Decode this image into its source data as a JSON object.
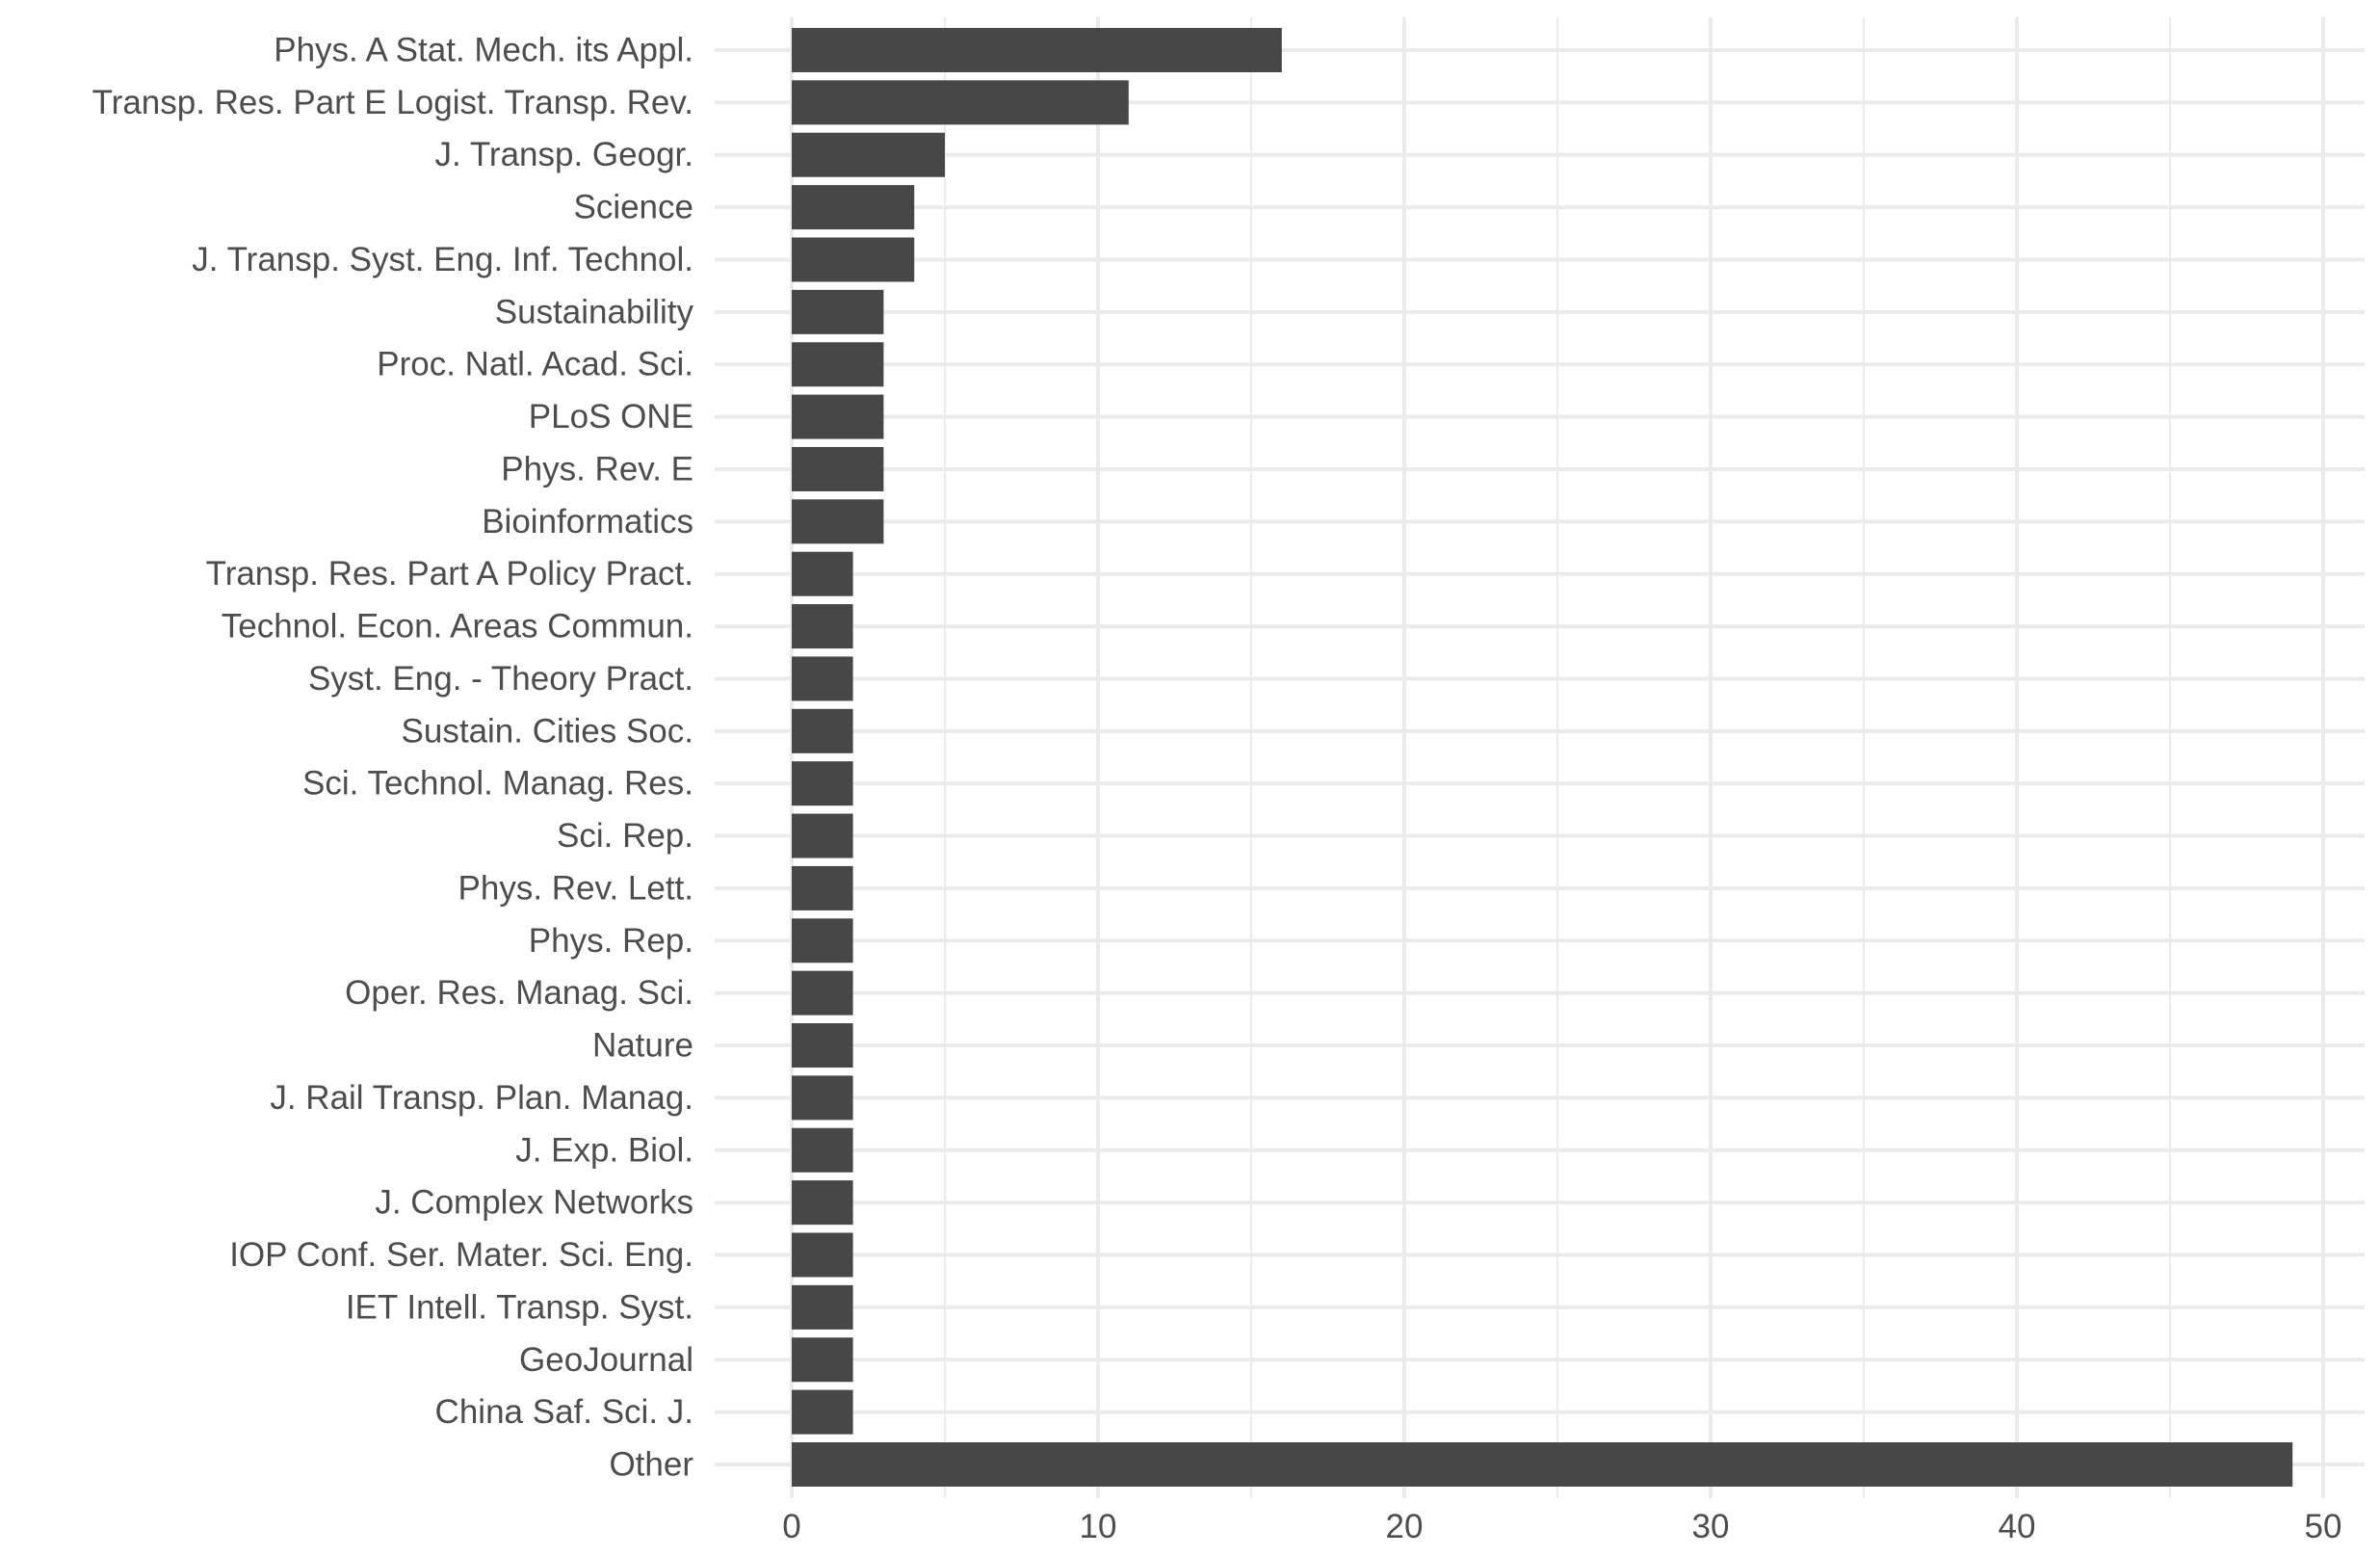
{
  "chart_data": {
    "type": "bar",
    "orientation": "horizontal",
    "title": "",
    "xlabel": "",
    "ylabel": "",
    "xlim": [
      0,
      50
    ],
    "x_ticks": [
      0,
      10,
      20,
      30,
      40,
      50
    ],
    "grid": true,
    "legend": "none",
    "bar_color": "#474747",
    "grid_color": "#ebebeb",
    "text_color": "#4d4d4d",
    "categories": [
      "Phys. A Stat. Mech. its Appl.",
      "Transp. Res. Part E Logist. Transp. Rev.",
      "J. Transp. Geogr.",
      "Science",
      "J. Transp. Syst. Eng. Inf. Technol.",
      "Sustainability",
      "Proc. Natl. Acad. Sci.",
      "PLoS ONE",
      "Phys. Rev. E",
      "Bioinformatics",
      "Transp. Res. Part A Policy Pract.",
      "Technol. Econ. Areas Commun.",
      "Syst. Eng. - Theory Pract.",
      "Sustain. Cities Soc.",
      "Sci. Technol. Manag. Res.",
      "Sci. Rep.",
      "Phys. Rev. Lett.",
      "Phys. Rep.",
      "Oper. Res. Manag. Sci.",
      "Nature",
      "J. Rail Transp. Plan. Manag.",
      "J. Exp. Biol.",
      "J. Complex Networks",
      "IOP Conf. Ser. Mater. Sci. Eng.",
      "IET Intell. Transp. Syst.",
      "GeoJournal",
      "China Saf. Sci. J.",
      "Other"
    ],
    "values": [
      16,
      11,
      5,
      4,
      4,
      3,
      3,
      3,
      3,
      3,
      2,
      2,
      2,
      2,
      2,
      2,
      2,
      2,
      2,
      2,
      2,
      2,
      2,
      2,
      2,
      2,
      2,
      49
    ]
  }
}
